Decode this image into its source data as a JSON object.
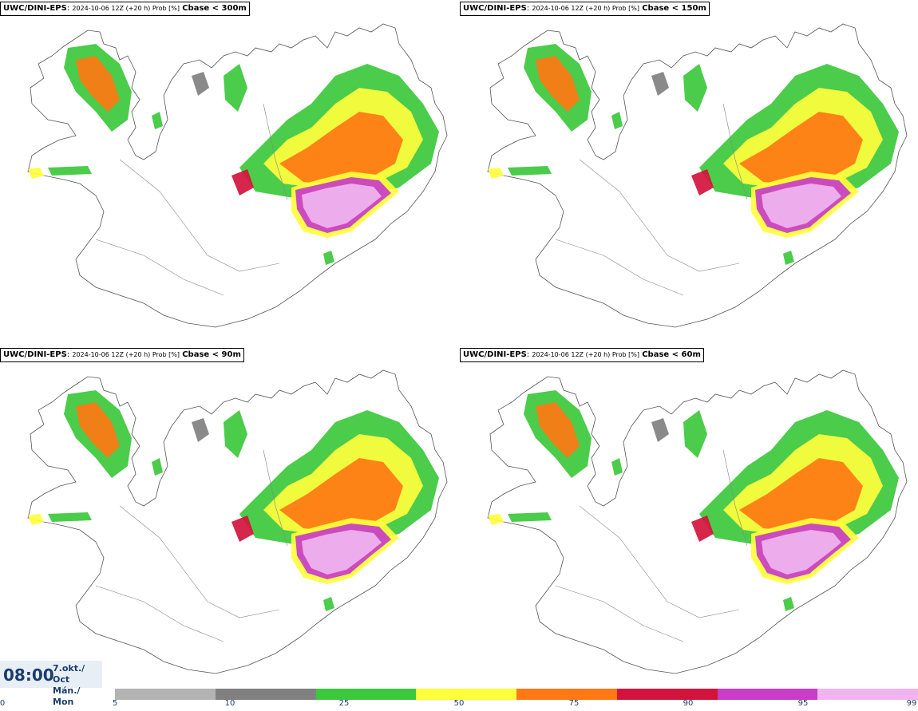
{
  "panels": [
    {
      "model": "UWC/DINI-EPS",
      "meta": "2024-10-06 12Z (+20 h) Prob [%]",
      "threshold": "Cbase < 300m"
    },
    {
      "model": "UWC/DINI-EPS",
      "meta": "2024-10-06 12Z (+20 h) Prob [%]",
      "threshold": "Cbase < 150m"
    },
    {
      "model": "UWC/DINI-EPS",
      "meta": "2024-10-06 12Z (+20 h) Prob [%]",
      "threshold": "Cbase < 90m"
    },
    {
      "model": "UWC/DINI-EPS",
      "meta": "2024-10-06 12Z (+20 h) Prob [%]",
      "threshold": "Cbase < 60m"
    }
  ],
  "valid_time": {
    "time": "08:00",
    "date_line1": "7.okt./ Oct",
    "date_line2": "Mán./ Mon"
  },
  "legend": {
    "ticks": [
      "0",
      "5",
      "10",
      "25",
      "50",
      "75",
      "90",
      "95",
      "99"
    ],
    "colors": [
      "#b3b3b3",
      "#808080",
      "#3cc83c",
      "#ffff3c",
      "#ff7814",
      "#d2143c",
      "#c83cc8",
      "#f0b4f0"
    ]
  }
}
